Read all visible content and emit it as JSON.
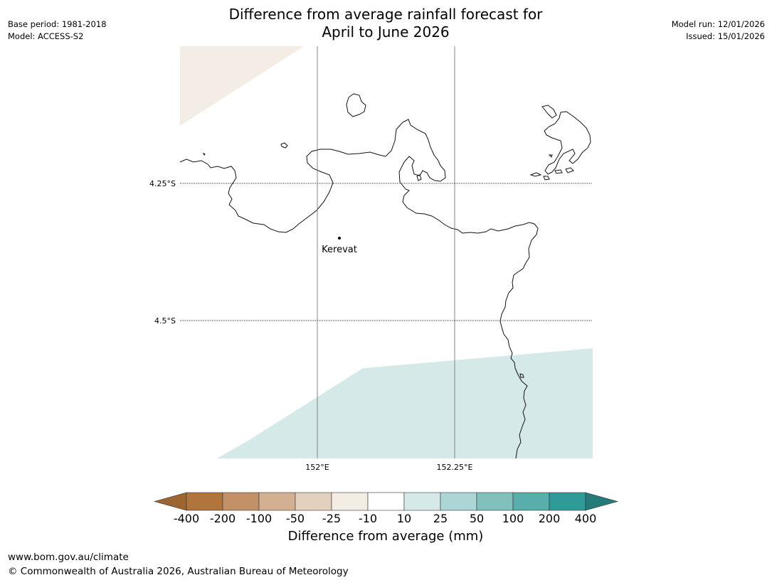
{
  "header": {
    "title_line1": "Difference from average rainfall forecast for",
    "title_line2": "April to June 2026",
    "base_period": "Base period: 1981-2018",
    "model": "Model: ACCESS-S2",
    "model_run": "Model run: 12/01/2026",
    "issued": "Issued: 15/01/2026"
  },
  "map": {
    "lat_labels": [
      "4.25°S",
      "4.5°S"
    ],
    "lon_labels": [
      "152°E",
      "152.25°E"
    ],
    "place": {
      "name": "Kerevat"
    }
  },
  "colorbar": {
    "title": "Difference from average (mm)",
    "tick_labels": [
      "-400",
      "-200",
      "-100",
      "-50",
      "-25",
      "-10",
      "10",
      "25",
      "50",
      "100",
      "200",
      "400"
    ],
    "colors": [
      "#9c6532",
      "#b1753c",
      "#c29167",
      "#d4b093",
      "#e4d0be",
      "#f4ede6",
      "#ffffff",
      "#d6e9e9",
      "#acd6d6",
      "#80c1be",
      "#58aeab",
      "#2f9b98",
      "#247b78"
    ]
  },
  "footer": {
    "url": "www.bom.gov.au/climate",
    "copyright": "© Commonwealth of Australia 2026, Australian Bureau of Meteorology"
  }
}
